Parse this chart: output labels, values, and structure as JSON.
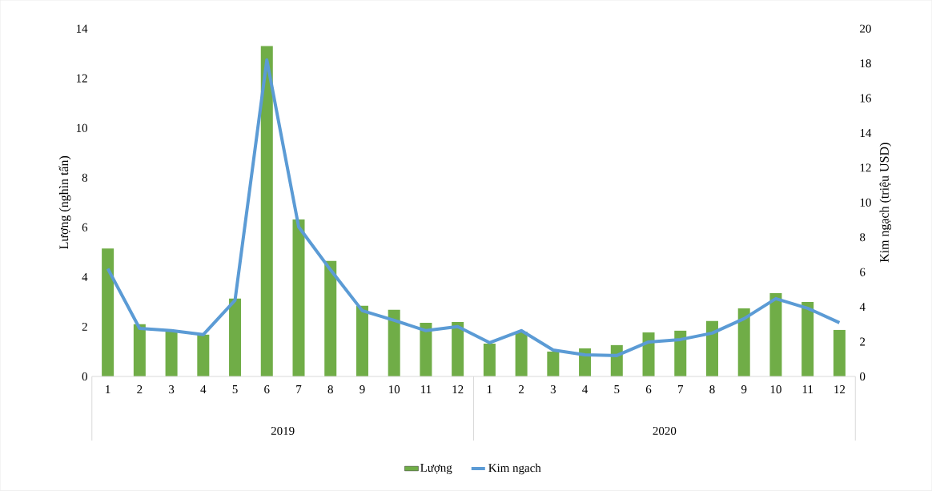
{
  "chart_data": {
    "type": "bar",
    "categories": [
      "1",
      "2",
      "3",
      "4",
      "5",
      "6",
      "7",
      "8",
      "9",
      "10",
      "11",
      "12",
      "1",
      "2",
      "3",
      "4",
      "5",
      "6",
      "7",
      "8",
      "9",
      "10",
      "11",
      "12"
    ],
    "annotations": [
      "2019",
      "2020"
    ],
    "ylabel": "Lượng (nghìn tấn)",
    "y2label": "Kim ngạch (triệu USD)",
    "ylim": [
      0,
      14
    ],
    "yticks": [
      0,
      2,
      4,
      6,
      8,
      10,
      12,
      14
    ],
    "y2lim": [
      0,
      20
    ],
    "y2ticks": [
      0,
      2,
      4,
      6,
      8,
      10,
      12,
      14,
      16,
      18,
      20
    ],
    "legend": "bottom",
    "grid": false,
    "series": [
      {
        "name": "Lượng",
        "color": "#70ad47",
        "values": [
          5.15,
          2.1,
          1.85,
          1.68,
          3.13,
          13.3,
          6.32,
          4.65,
          2.84,
          2.68,
          2.16,
          2.19,
          1.32,
          1.8,
          1.0,
          1.13,
          1.26,
          1.77,
          1.84,
          2.23,
          2.74,
          3.35,
          3.0,
          1.87
        ]
      },
      {
        "name": "Kim ngach",
        "type": "line",
        "axis": "y2",
        "color": "#5b9bd5",
        "values": [
          6.2,
          2.76,
          2.63,
          2.4,
          4.38,
          18.2,
          8.6,
          6.13,
          3.78,
          3.23,
          2.63,
          2.86,
          1.94,
          2.63,
          1.52,
          1.24,
          1.2,
          1.98,
          2.12,
          2.49,
          3.32,
          4.47,
          3.92,
          3.09
        ]
      }
    ]
  }
}
